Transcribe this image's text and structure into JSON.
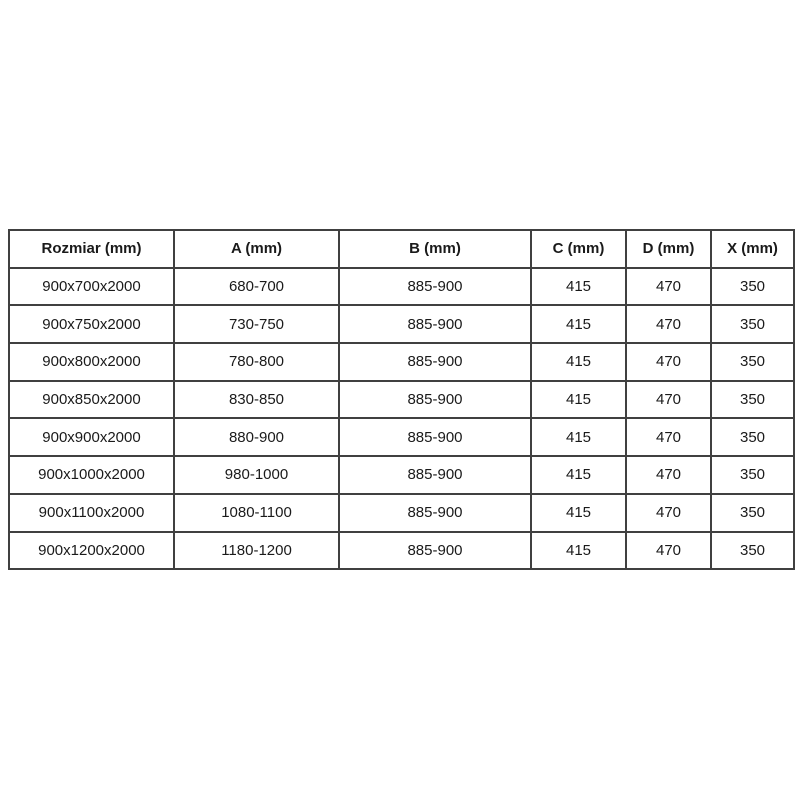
{
  "colors": {
    "border": "#404040",
    "text": "#1a1a1a",
    "background": "#ffffff"
  },
  "table": {
    "headers": [
      "Rozmiar (mm)",
      "A (mm)",
      "B (mm)",
      "C (mm)",
      "D (mm)",
      "X (mm)"
    ],
    "rows": [
      [
        "900x700x2000",
        "680-700",
        "885-900",
        "415",
        "470",
        "350"
      ],
      [
        "900x750x2000",
        "730-750",
        "885-900",
        "415",
        "470",
        "350"
      ],
      [
        "900x800x2000",
        "780-800",
        "885-900",
        "415",
        "470",
        "350"
      ],
      [
        "900x850x2000",
        "830-850",
        "885-900",
        "415",
        "470",
        "350"
      ],
      [
        "900x900x2000",
        "880-900",
        "885-900",
        "415",
        "470",
        "350"
      ],
      [
        "900x1000x2000",
        "980-1000",
        "885-900",
        "415",
        "470",
        "350"
      ],
      [
        "900x1100x2000",
        "1080-1100",
        "885-900",
        "415",
        "470",
        "350"
      ],
      [
        "900x1200x2000",
        "1180-1200",
        "885-900",
        "415",
        "470",
        "350"
      ]
    ]
  },
  "chart_data": {
    "type": "table",
    "title": "",
    "columns": [
      "Rozmiar (mm)",
      "A (mm)",
      "B (mm)",
      "C (mm)",
      "D (mm)",
      "X (mm)"
    ],
    "rows": [
      [
        "900x700x2000",
        "680-700",
        "885-900",
        415,
        470,
        350
      ],
      [
        "900x750x2000",
        "730-750",
        "885-900",
        415,
        470,
        350
      ],
      [
        "900x800x2000",
        "780-800",
        "885-900",
        415,
        470,
        350
      ],
      [
        "900x850x2000",
        "830-850",
        "885-900",
        415,
        470,
        350
      ],
      [
        "900x900x2000",
        "880-900",
        "885-900",
        415,
        470,
        350
      ],
      [
        "900x1000x2000",
        "980-1000",
        "885-900",
        415,
        470,
        350
      ],
      [
        "900x1100x2000",
        "1080-1100",
        "885-900",
        415,
        470,
        350
      ],
      [
        "900x1200x2000",
        "1180-1200",
        "885-900",
        415,
        470,
        350
      ]
    ]
  }
}
